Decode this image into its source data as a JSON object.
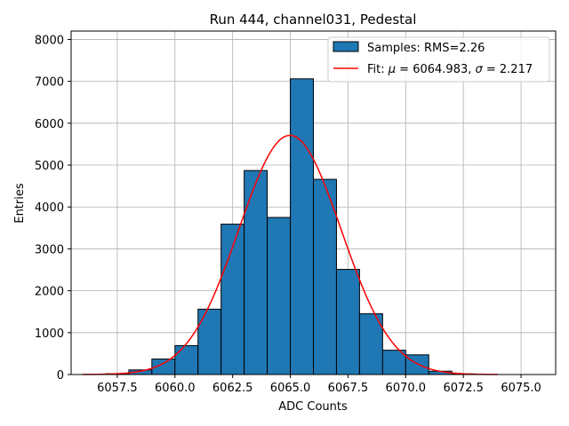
{
  "chart_data": {
    "type": "bar",
    "title": "Run 444, channel031, Pedestal",
    "xlabel": "ADC Counts",
    "ylabel": "Entries",
    "xlim": [
      6055.5,
      6076.5
    ],
    "ylim": [
      0,
      8200
    ],
    "grid": true,
    "legend_position": "top-right",
    "xticks": [
      6057.5,
      6060.0,
      6062.5,
      6065.0,
      6067.5,
      6070.0,
      6072.5,
      6075.0
    ],
    "xtick_labels": [
      "6057.5",
      "6060.0",
      "6062.5",
      "6065.0",
      "6067.5",
      "6070.0",
      "6072.5",
      "6075.0"
    ],
    "yticks": [
      0,
      1000,
      2000,
      3000,
      4000,
      5000,
      6000,
      7000,
      8000
    ],
    "ytick_labels": [
      "0",
      "1000",
      "2000",
      "3000",
      "4000",
      "5000",
      "6000",
      "7000",
      "8000"
    ],
    "bin_width": 1,
    "bins": [
      {
        "left": 6057,
        "value": 20
      },
      {
        "left": 6058,
        "value": 110
      },
      {
        "left": 6059,
        "value": 370
      },
      {
        "left": 6060,
        "value": 690
      },
      {
        "left": 6061,
        "value": 1560
      },
      {
        "left": 6062,
        "value": 3590
      },
      {
        "left": 6063,
        "value": 4870
      },
      {
        "left": 6064,
        "value": 3750
      },
      {
        "left": 6065,
        "value": 7060
      },
      {
        "left": 6066,
        "value": 4660
      },
      {
        "left": 6067,
        "value": 2510
      },
      {
        "left": 6068,
        "value": 1450
      },
      {
        "left": 6069,
        "value": 580
      },
      {
        "left": 6070,
        "value": 470
      },
      {
        "left": 6071,
        "value": 80
      },
      {
        "left": 6072,
        "value": 15
      }
    ],
    "fit": {
      "mu": 6064.983,
      "sigma": 2.217,
      "amplitude": 5710,
      "x_range": [
        6056.0,
        6074.0
      ]
    },
    "legend": {
      "samples_label": "Samples: RMS=2.26",
      "fit_label_prefix": "Fit: ",
      "fit_mu_symbol": "μ",
      "fit_mu_text": " = 6064.983, ",
      "fit_sigma_symbol": "σ",
      "fit_sigma_text": " = 2.217"
    },
    "colors": {
      "bar_fill": "#1f77b4",
      "bar_edge": "#000000",
      "fit_line": "#ff0000",
      "grid": "#b0b0b0"
    }
  }
}
